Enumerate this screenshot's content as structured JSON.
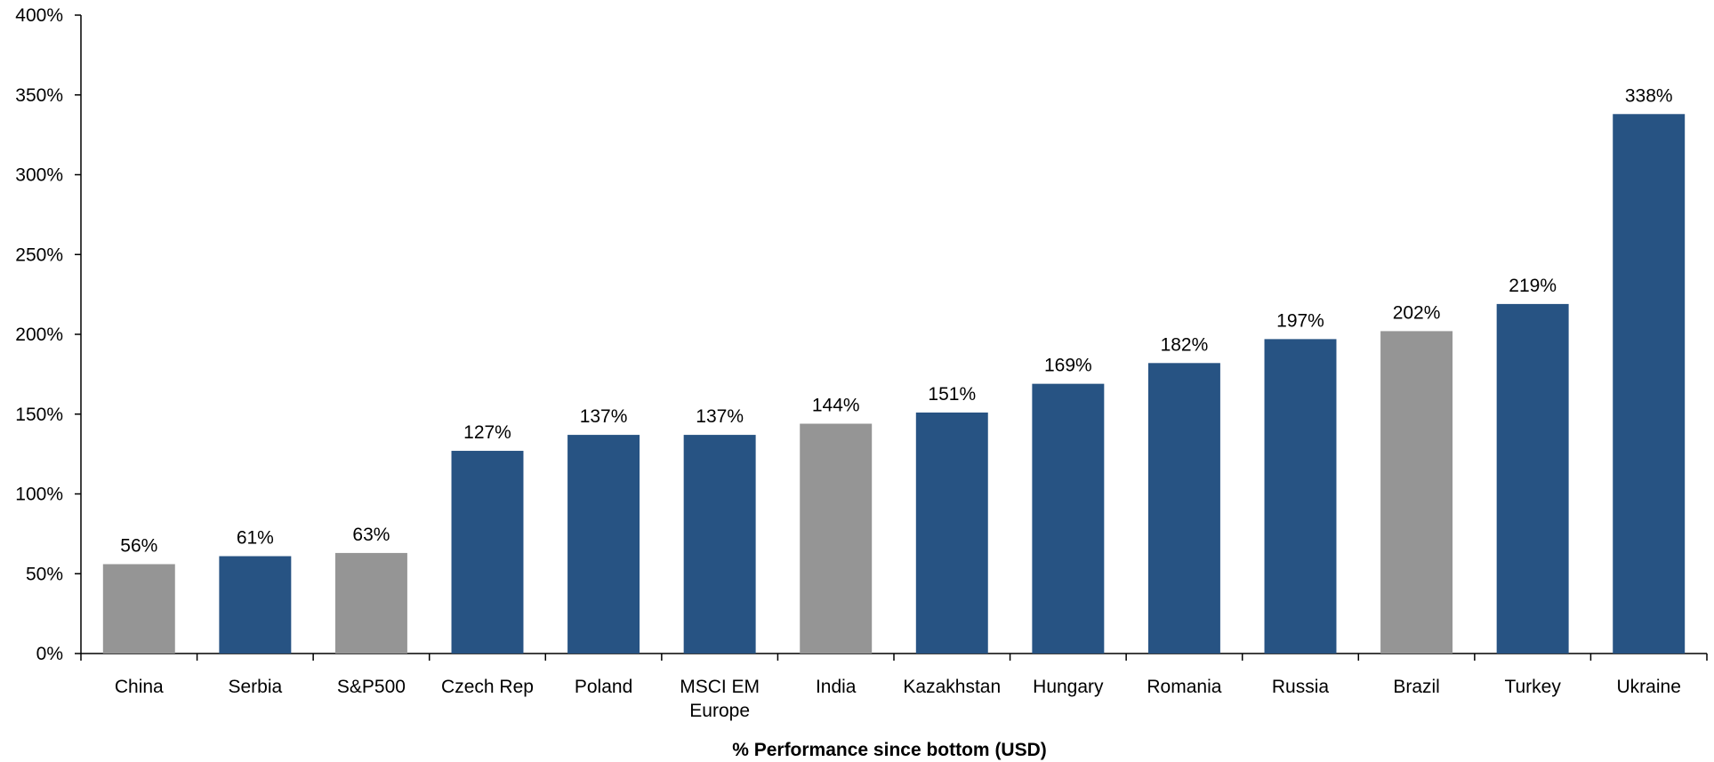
{
  "chart_data": {
    "type": "bar",
    "title": "",
    "xlabel": "% Performance  since  bottom  (USD)",
    "ylabel": "",
    "ylim": [
      0,
      400
    ],
    "y_ticks": [
      "0%",
      "50%",
      "100%",
      "150%",
      "200%",
      "250%",
      "300%",
      "350%",
      "400%"
    ],
    "y_tick_values": [
      0,
      50,
      100,
      150,
      200,
      250,
      300,
      350,
      400
    ],
    "categories": [
      [
        "China"
      ],
      [
        "Serbia"
      ],
      [
        "S&P500"
      ],
      [
        "Czech Rep"
      ],
      [
        "Poland"
      ],
      [
        "MSCI EM",
        "Europe"
      ],
      [
        "India"
      ],
      [
        "Kazakhstan"
      ],
      [
        "Hungary"
      ],
      [
        "Romania"
      ],
      [
        "Russia"
      ],
      [
        "Brazil"
      ],
      [
        "Turkey"
      ],
      [
        "Ukraine"
      ]
    ],
    "values": [
      56,
      61,
      63,
      127,
      137,
      137,
      144,
      151,
      169,
      182,
      197,
      202,
      219,
      338
    ],
    "data_labels": [
      "56%",
      "61%",
      "63%",
      "127%",
      "137%",
      "137%",
      "144%",
      "151%",
      "169%",
      "182%",
      "197%",
      "202%",
      "219%",
      "338%"
    ],
    "bar_colors": [
      "#959595",
      "#275383",
      "#959595",
      "#275383",
      "#275383",
      "#275383",
      "#959595",
      "#275383",
      "#275383",
      "#275383",
      "#275383",
      "#959595",
      "#275383",
      "#275383"
    ],
    "grid": false,
    "legend": "none"
  }
}
